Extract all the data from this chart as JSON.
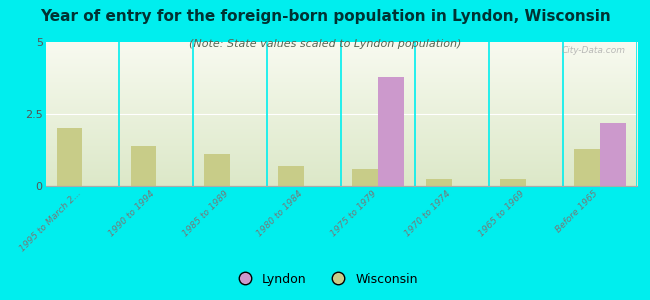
{
  "title": "Year of entry for the foreign-born population in Lyndon, Wisconsin",
  "subtitle": "(Note: State values scaled to Lyndon population)",
  "categories": [
    "1995 to March 2...",
    "1990 to 1994",
    "1985 to 1989",
    "1980 to 1984",
    "1975 to 1979",
    "1970 to 1974",
    "1965 to 1969",
    "Before 1965"
  ],
  "lyndon_values": [
    0,
    0,
    0,
    0,
    3.8,
    0,
    0,
    2.2
  ],
  "wisconsin_values": [
    2.0,
    1.4,
    1.1,
    0.7,
    0.6,
    0.25,
    0.25,
    1.3
  ],
  "lyndon_color": "#cc99cc",
  "wisconsin_color": "#c8cc88",
  "background_color": "#00eeee",
  "ylim": [
    0,
    5
  ],
  "yticks": [
    0,
    2.5,
    5
  ],
  "bar_width": 0.35,
  "watermark": "City-Data.com",
  "title_fontsize": 11,
  "subtitle_fontsize": 8,
  "plot_bg_top": "#f8faf0",
  "plot_bg_bottom": "#dce8c8"
}
